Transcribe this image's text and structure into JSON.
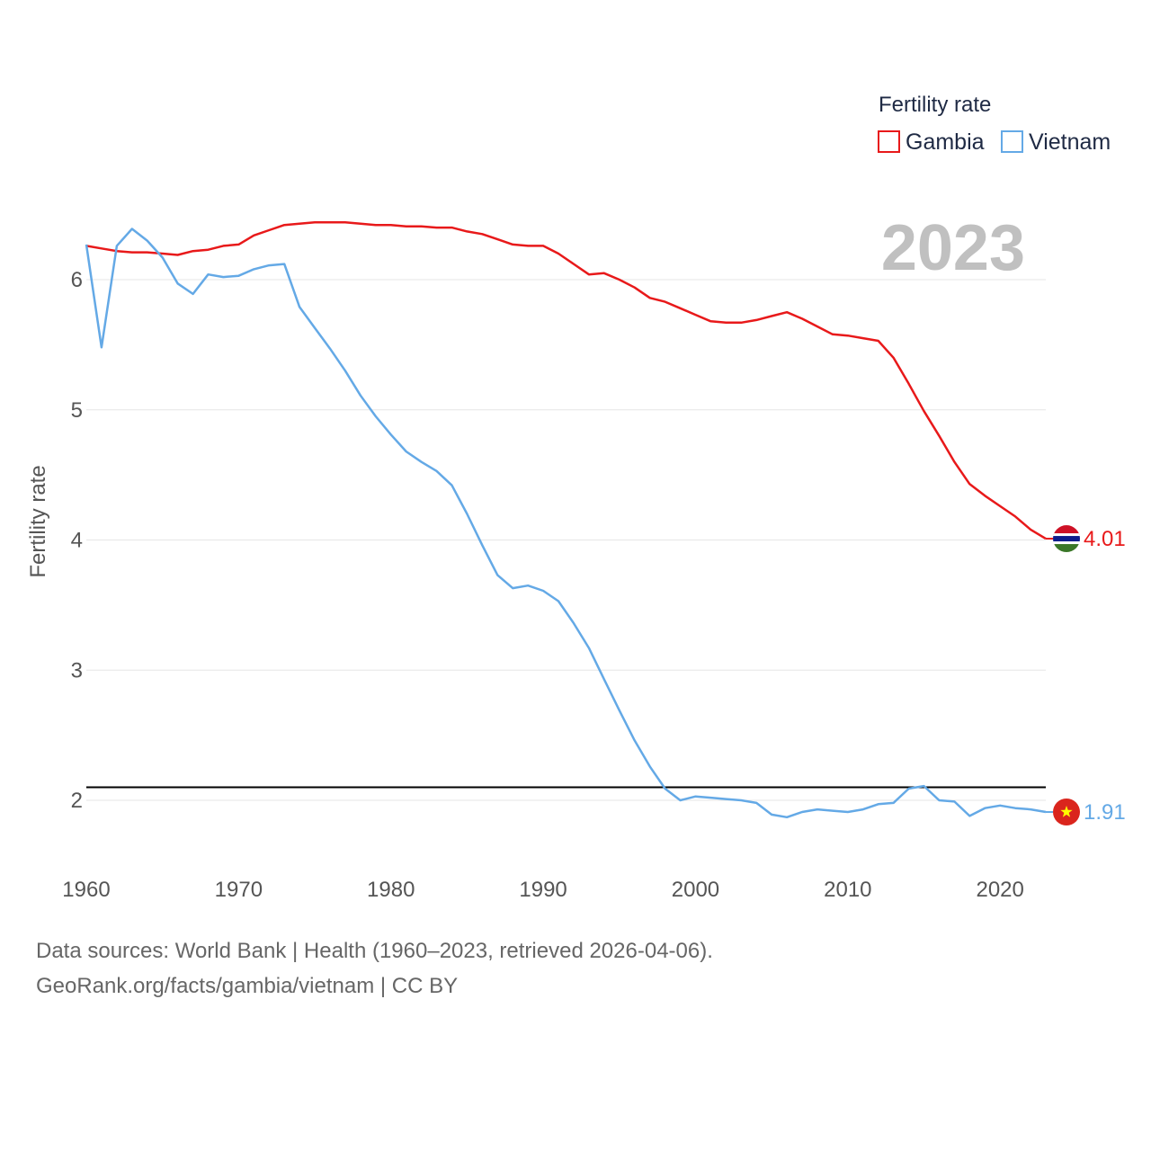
{
  "chart_data": {
    "type": "line",
    "year_label": "2023",
    "ylabel": "Fertility rate",
    "ylim": [
      1.5,
      6.55
    ],
    "xlim": [
      1960,
      2023
    ],
    "yticks": [
      2,
      3,
      4,
      5,
      6
    ],
    "xticks": [
      1960,
      1970,
      1980,
      1990,
      2000,
      2010,
      2020
    ],
    "legend": {
      "title": "Fertility rate",
      "position": "top-right"
    },
    "reference_line": 2.1,
    "x": [
      1960,
      1961,
      1962,
      1963,
      1964,
      1965,
      1966,
      1967,
      1968,
      1969,
      1970,
      1971,
      1972,
      1973,
      1974,
      1975,
      1976,
      1977,
      1978,
      1979,
      1980,
      1981,
      1982,
      1983,
      1984,
      1985,
      1986,
      1987,
      1988,
      1989,
      1990,
      1991,
      1992,
      1993,
      1994,
      1995,
      1996,
      1997,
      1998,
      1999,
      2000,
      2001,
      2002,
      2003,
      2004,
      2005,
      2006,
      2007,
      2008,
      2009,
      2010,
      2011,
      2012,
      2013,
      2014,
      2015,
      2016,
      2017,
      2018,
      2019,
      2020,
      2021,
      2022,
      2023
    ],
    "series": [
      {
        "name": "Gambia",
        "color": "#e8191a",
        "end_label": "4.01",
        "values": [
          6.26,
          6.24,
          6.22,
          6.21,
          6.21,
          6.2,
          6.19,
          6.22,
          6.23,
          6.26,
          6.27,
          6.34,
          6.38,
          6.42,
          6.43,
          6.44,
          6.44,
          6.44,
          6.43,
          6.42,
          6.42,
          6.41,
          6.41,
          6.4,
          6.4,
          6.37,
          6.35,
          6.31,
          6.27,
          6.26,
          6.26,
          6.2,
          6.12,
          6.04,
          6.05,
          6.0,
          5.94,
          5.86,
          5.83,
          5.78,
          5.73,
          5.68,
          5.67,
          5.67,
          5.69,
          5.72,
          5.75,
          5.7,
          5.64,
          5.58,
          5.57,
          5.55,
          5.53,
          5.4,
          5.2,
          4.99,
          4.8,
          4.6,
          4.43,
          4.34,
          4.26,
          4.18,
          4.08,
          4.01
        ]
      },
      {
        "name": "Vietnam",
        "color": "#64a9e6",
        "end_label": "1.91",
        "values": [
          6.27,
          5.48,
          6.26,
          6.39,
          6.3,
          6.17,
          5.97,
          5.89,
          6.04,
          6.02,
          6.03,
          6.08,
          6.11,
          6.12,
          5.79,
          5.63,
          5.47,
          5.3,
          5.11,
          4.95,
          4.81,
          4.68,
          4.6,
          4.53,
          4.42,
          4.2,
          3.96,
          3.73,
          3.63,
          3.65,
          3.61,
          3.53,
          3.36,
          3.17,
          2.93,
          2.69,
          2.46,
          2.26,
          2.09,
          2.0,
          2.03,
          2.02,
          2.01,
          2.0,
          1.98,
          1.89,
          1.87,
          1.91,
          1.93,
          1.92,
          1.91,
          1.93,
          1.97,
          1.98,
          2.09,
          2.11,
          2.0,
          1.99,
          1.88,
          1.94,
          1.96,
          1.94,
          1.93,
          1.91
        ]
      }
    ]
  },
  "footer": {
    "line1": "Data sources: World Bank | Health (1960–2023, retrieved 2026-04-06).",
    "line2": "GeoRank.org/facts/gambia/vietnam | CC BY"
  }
}
